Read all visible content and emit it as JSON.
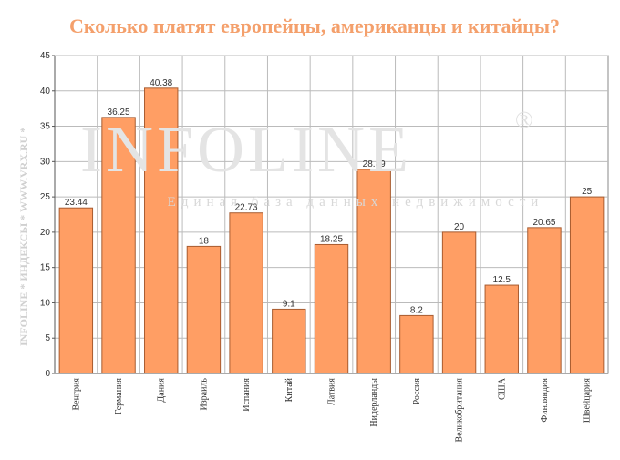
{
  "chart_data": {
    "type": "bar",
    "title": "Сколько платят европейцы, американцы и китайцы?",
    "categories": [
      "Венгрия",
      "Германия",
      "Дания",
      "Израиль",
      "Испания",
      "Китай",
      "Латвия",
      "Нидерланды",
      "Россия",
      "Великобритания",
      "США",
      "Финляндия",
      "Швейцария"
    ],
    "values": [
      23.44,
      36.25,
      40.38,
      18,
      22.73,
      9.1,
      18.25,
      28.89,
      8.2,
      20,
      12.5,
      20.65,
      25
    ],
    "color": "#ff9e64",
    "ylim": [
      0,
      45
    ],
    "yticks": [
      0,
      5,
      10,
      15,
      20,
      25,
      30,
      35,
      40,
      45
    ],
    "grid": true,
    "watermark": {
      "logo": "INFOLINE",
      "mark": "®",
      "tagline": "Единая база данных недвижимости",
      "side": "INFOLINE * ИНДЕКСЫ * WWW.VRX.RU *"
    }
  }
}
